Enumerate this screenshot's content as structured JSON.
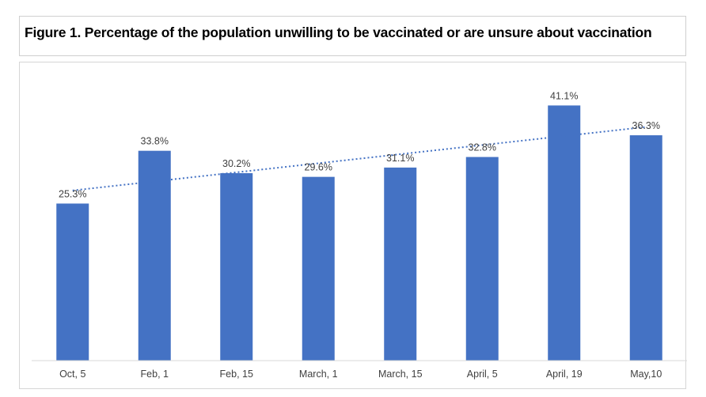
{
  "chart_data": {
    "type": "bar",
    "title": "Figure 1. Percentage of the population unwilling to be vaccinated or are unsure about vaccination",
    "categories": [
      "Oct, 5",
      "Feb, 1",
      "Feb, 15",
      "March, 1",
      "March, 15",
      "April, 5",
      "April, 19",
      "May,10"
    ],
    "values": [
      25.3,
      33.8,
      30.2,
      29.6,
      31.1,
      32.8,
      41.1,
      36.3
    ],
    "data_labels": [
      "25.3%",
      "33.8%",
      "30.2%",
      "29.6%",
      "31.1%",
      "32.8%",
      "41.1%",
      "36.3%"
    ],
    "ylim": [
      0,
      45
    ],
    "trendline": "linear",
    "grid": false,
    "legend": "none",
    "colors": {
      "bar": "#4472c4",
      "trendline": "#4472c4",
      "axis": "#d9d9d9",
      "label": "#404040"
    }
  }
}
